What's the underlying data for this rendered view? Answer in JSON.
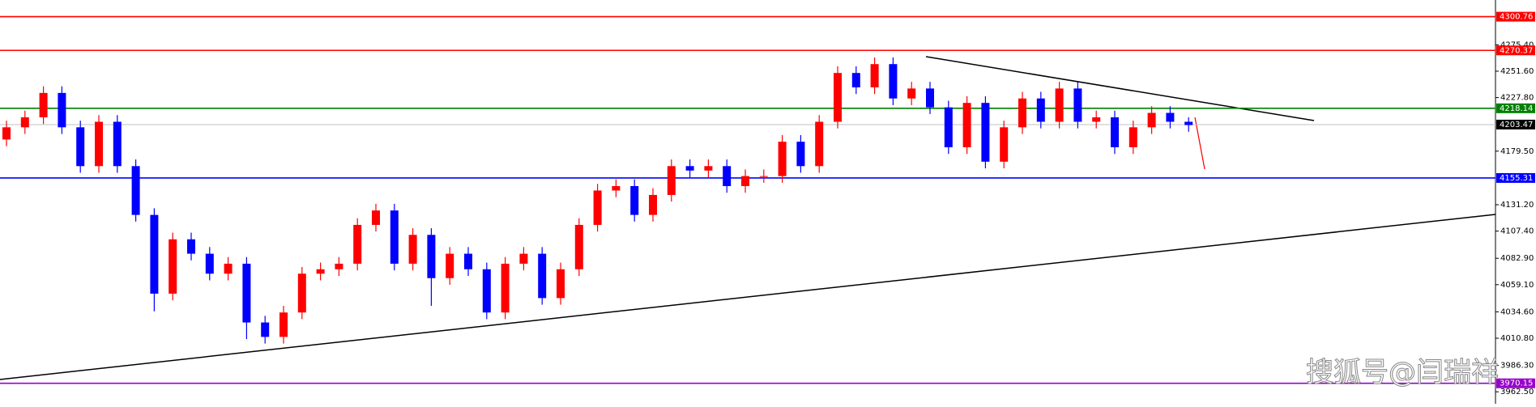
{
  "chart_data": {
    "type": "candlestick",
    "up_color": "#ff0000",
    "down_color": "#0000ff",
    "candles": [
      [
        4190,
        4207,
        4184,
        4201
      ],
      [
        4201,
        4216,
        4195,
        4210
      ],
      [
        4210,
        4238,
        4204,
        4232
      ],
      [
        4232,
        4238,
        4195,
        4201
      ],
      [
        4201,
        4207,
        4160,
        4166
      ],
      [
        4166,
        4212,
        4160,
        4206
      ],
      [
        4206,
        4212,
        4160,
        4166
      ],
      [
        4166,
        4172,
        4116,
        4122
      ],
      [
        4122,
        4128,
        4035,
        4051
      ],
      [
        4051,
        4106,
        4045,
        4100
      ],
      [
        4100,
        4106,
        4081,
        4087
      ],
      [
        4087,
        4093,
        4063,
        4069
      ],
      [
        4069,
        4084,
        4063,
        4078
      ],
      [
        4078,
        4084,
        4010,
        4025
      ],
      [
        4025,
        4031,
        4006,
        4012
      ],
      [
        4012,
        4040,
        4006,
        4034
      ],
      [
        4034,
        4075,
        4028,
        4069
      ],
      [
        4069,
        4079,
        4063,
        4073
      ],
      [
        4073,
        4084,
        4067,
        4078
      ],
      [
        4078,
        4119,
        4072,
        4113
      ],
      [
        4113,
        4132,
        4107,
        4126
      ],
      [
        4126,
        4132,
        4072,
        4078
      ],
      [
        4078,
        4110,
        4072,
        4104
      ],
      [
        4104,
        4110,
        4040,
        4065
      ],
      [
        4065,
        4093,
        4059,
        4087
      ],
      [
        4087,
        4093,
        4067,
        4073
      ],
      [
        4073,
        4079,
        4028,
        4034
      ],
      [
        4034,
        4084,
        4028,
        4078
      ],
      [
        4078,
        4093,
        4072,
        4087
      ],
      [
        4087,
        4093,
        4041,
        4047
      ],
      [
        4047,
        4079,
        4041,
        4073
      ],
      [
        4073,
        4119,
        4067,
        4113
      ],
      [
        4113,
        4150,
        4107,
        4144
      ],
      [
        4144,
        4154,
        4138,
        4148
      ],
      [
        4148,
        4154,
        4116,
        4122
      ],
      [
        4122,
        4146,
        4116,
        4140
      ],
      [
        4140,
        4172,
        4134,
        4166
      ],
      [
        4166,
        4172,
        4156,
        4162
      ],
      [
        4162,
        4172,
        4156,
        4166
      ],
      [
        4166,
        4172,
        4142,
        4148
      ],
      [
        4148,
        4163,
        4142,
        4157
      ],
      [
        4157,
        4163,
        4151,
        4157
      ],
      [
        4157,
        4194,
        4151,
        4188
      ],
      [
        4188,
        4194,
        4160,
        4166
      ],
      [
        4166,
        4212,
        4160,
        4206
      ],
      [
        4206,
        4256,
        4200,
        4250
      ],
      [
        4250,
        4256,
        4231,
        4237
      ],
      [
        4237,
        4264,
        4231,
        4258
      ],
      [
        4258,
        4264,
        4221,
        4227
      ],
      [
        4227,
        4242,
        4221,
        4236
      ],
      [
        4236,
        4242,
        4213,
        4219
      ],
      [
        4219,
        4225,
        4177,
        4183
      ],
      [
        4183,
        4229,
        4177,
        4223
      ],
      [
        4223,
        4229,
        4164,
        4170
      ],
      [
        4170,
        4207,
        4164,
        4201
      ],
      [
        4201,
        4233,
        4195,
        4227
      ],
      [
        4227,
        4233,
        4200,
        4206
      ],
      [
        4206,
        4242,
        4200,
        4236
      ],
      [
        4236,
        4242,
        4200,
        4206
      ],
      [
        4206,
        4216,
        4200,
        4210
      ],
      [
        4210,
        4216,
        4177,
        4183
      ],
      [
        4183,
        4207,
        4177,
        4201
      ],
      [
        4201,
        4220,
        4195,
        4214
      ],
      [
        4214,
        4220,
        4200,
        4206
      ],
      [
        4206,
        4210,
        4197,
        4203
      ]
    ],
    "ylim": [
      3951.7,
      4315.8
    ],
    "yticks": [
      {
        "value": 4275.4,
        "label": "4275.40"
      },
      {
        "value": 4251.6,
        "label": "4251.60"
      },
      {
        "value": 4227.8,
        "label": "4227.80"
      },
      {
        "value": 4179.5,
        "label": "4179.50"
      },
      {
        "value": 4131.2,
        "label": "4131.20"
      },
      {
        "value": 4107.4,
        "label": "4107.40"
      },
      {
        "value": 4082.9,
        "label": "4082.90"
      },
      {
        "value": 4059.1,
        "label": "4059.10"
      },
      {
        "value": 4034.6,
        "label": "4034.60"
      },
      {
        "value": 4010.8,
        "label": "4010.80"
      },
      {
        "value": 3986.3,
        "label": "3986.30"
      },
      {
        "value": 3962.5,
        "label": "3962.50"
      }
    ],
    "levels": [
      {
        "value": 4300.76,
        "color": "#ff0000"
      },
      {
        "value": 4270.37,
        "color": "#ff0000"
      },
      {
        "value": 4218.14,
        "color": "#008000"
      },
      {
        "value": 4203.47,
        "color": "#c0c0c0"
      },
      {
        "value": 4155.31,
        "color": "#0000ff"
      },
      {
        "value": 3970.15,
        "color": "#9900cc"
      }
    ],
    "watermark": "搜狐号@闫瑞祥"
  }
}
